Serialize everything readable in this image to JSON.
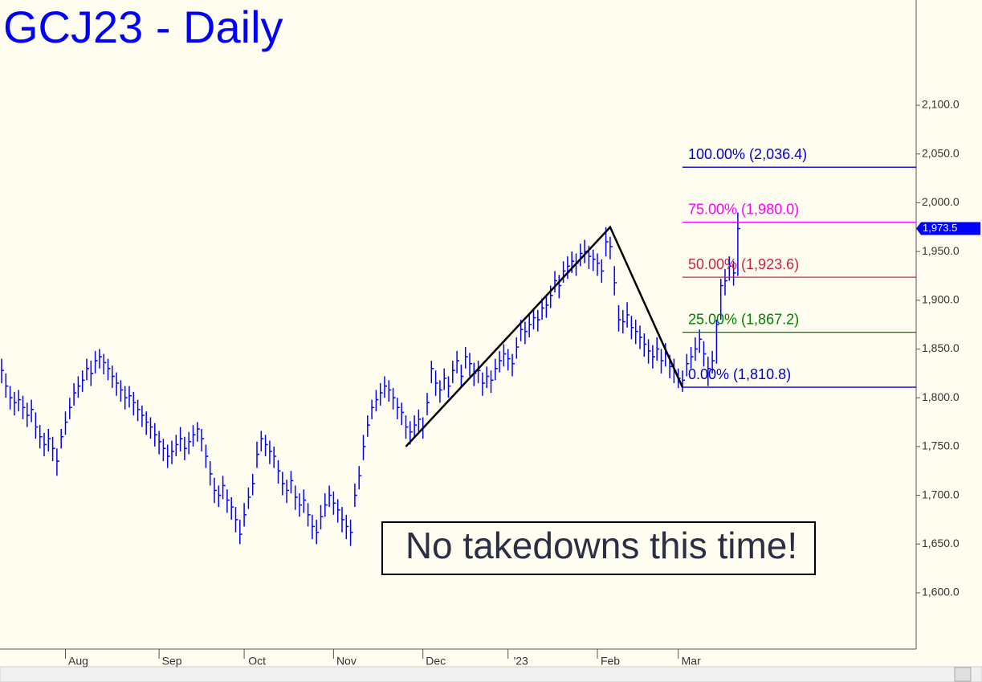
{
  "chart_data": {
    "type": "ohlc",
    "title": "GCJ23 - Daily",
    "color": "#0000ff",
    "categories": [
      null,
      null,
      null,
      null,
      null,
      null,
      null,
      null,
      null,
      null,
      null,
      null,
      null,
      null,
      null,
      "Aug",
      null,
      null,
      null,
      null,
      null,
      null,
      null,
      null,
      null,
      null,
      null,
      null,
      null,
      null,
      null,
      null,
      null,
      null,
      null,
      null,
      null,
      "Sep",
      null,
      null,
      null,
      null,
      null,
      null,
      null,
      null,
      null,
      null,
      null,
      null,
      null,
      null,
      null,
      null,
      null,
      null,
      null,
      "Oct",
      null,
      null,
      null,
      null,
      null,
      null,
      null,
      null,
      null,
      null,
      null,
      null,
      null,
      null,
      null,
      null,
      null,
      null,
      null,
      null,
      "Nov",
      null,
      null,
      null,
      null,
      null,
      null,
      null,
      null,
      null,
      null,
      null,
      null,
      null,
      null,
      null,
      null,
      null,
      null,
      null,
      null,
      "Dec",
      null,
      null,
      null,
      null,
      null,
      null,
      null,
      null,
      null,
      null,
      null,
      null,
      null,
      null,
      null,
      null,
      null,
      null,
      null,
      "'23",
      null,
      null,
      null,
      null,
      null,
      null,
      null,
      null,
      null,
      null,
      null,
      null,
      null,
      null,
      null,
      null,
      null,
      null,
      null,
      null,
      "Feb",
      null,
      null,
      null,
      null,
      null,
      null,
      null,
      null,
      null,
      null,
      null,
      null,
      null,
      null,
      null,
      null,
      null,
      null,
      "Mar",
      null,
      null,
      null,
      null,
      null,
      null,
      null,
      null,
      null,
      null,
      null,
      null,
      null,
      null
    ],
    "high": [
      1840,
      1825,
      1812,
      1806,
      1808,
      1802,
      1795,
      1798,
      1785,
      1772,
      1764,
      1768,
      1760,
      1748,
      1768,
      1786,
      1800,
      1815,
      1822,
      1828,
      1840,
      1838,
      1848,
      1850,
      1845,
      1840,
      1833,
      1826,
      1818,
      1812,
      1812,
      1806,
      1798,
      1792,
      1786,
      1780,
      1774,
      1766,
      1758,
      1752,
      1756,
      1762,
      1770,
      1760,
      1765,
      1772,
      1775,
      1768,
      1752,
      1735,
      1718,
      1710,
      1720,
      1706,
      1698,
      1688,
      1675,
      1692,
      1708,
      1722,
      1755,
      1766,
      1762,
      1756,
      1750,
      1736,
      1724,
      1716,
      1725,
      1710,
      1702,
      1706,
      1692,
      1680,
      1675,
      1690,
      1702,
      1710,
      1704,
      1696,
      1688,
      1680,
      1675,
      1712,
      1730,
      1762,
      1782,
      1798,
      1808,
      1815,
      1822,
      1818,
      1810,
      1800,
      1795,
      1782,
      1776,
      1782,
      1788,
      1780,
      1805,
      1838,
      1828,
      1818,
      1830,
      1822,
      1838,
      1848,
      1834,
      1852,
      1846,
      1836,
      1838,
      1826,
      1832,
      1828,
      1840,
      1848,
      1855,
      1850,
      1845,
      1862,
      1880,
      1878,
      1886,
      1892,
      1890,
      1902,
      1905,
      1915,
      1930,
      1926,
      1940,
      1945,
      1950,
      1948,
      1958,
      1962,
      1956,
      1952,
      1948,
      1942,
      1975,
      1965,
      1935,
      1895,
      1890,
      1898,
      1884,
      1880,
      1874,
      1866,
      1860,
      1854,
      1862,
      1850,
      1856,
      1844,
      1840,
      1830,
      1828,
      1845,
      1852,
      1862,
      1870,
      1858,
      1842,
      1848,
      1880,
      1922,
      1932,
      1945,
      1940,
      1990
    ],
    "low": [
      1815,
      1800,
      1788,
      1782,
      1786,
      1778,
      1770,
      1775,
      1758,
      1748,
      1740,
      1745,
      1735,
      1720,
      1748,
      1762,
      1778,
      1792,
      1800,
      1806,
      1818,
      1812,
      1825,
      1830,
      1824,
      1818,
      1810,
      1802,
      1796,
      1788,
      1790,
      1782,
      1776,
      1770,
      1762,
      1758,
      1750,
      1742,
      1735,
      1728,
      1732,
      1740,
      1745,
      1736,
      1742,
      1750,
      1755,
      1745,
      1728,
      1710,
      1692,
      1688,
      1696,
      1682,
      1675,
      1662,
      1650,
      1668,
      1686,
      1700,
      1728,
      1745,
      1740,
      1732,
      1728,
      1712,
      1700,
      1692,
      1702,
      1685,
      1678,
      1682,
      1668,
      1655,
      1650,
      1665,
      1678,
      1688,
      1680,
      1672,
      1662,
      1655,
      1648,
      1688,
      1706,
      1736,
      1760,
      1778,
      1786,
      1792,
      1800,
      1796,
      1788,
      1778,
      1772,
      1758,
      1752,
      1760,
      1765,
      1758,
      1782,
      1815,
      1802,
      1795,
      1808,
      1800,
      1815,
      1825,
      1810,
      1830,
      1822,
      1812,
      1815,
      1802,
      1810,
      1805,
      1818,
      1826,
      1832,
      1828,
      1822,
      1840,
      1858,
      1855,
      1862,
      1870,
      1868,
      1880,
      1882,
      1892,
      1908,
      1902,
      1918,
      1922,
      1928,
      1925,
      1935,
      1938,
      1932,
      1930,
      1925,
      1918,
      1945,
      1942,
      1905,
      1868,
      1866,
      1872,
      1860,
      1855,
      1850,
      1842,
      1835,
      1830,
      1838,
      1825,
      1832,
      1820,
      1815,
      1810,
      1806,
      1822,
      1830,
      1838,
      1846,
      1832,
      1812,
      1825,
      1835,
      1880,
      1905,
      1920,
      1915,
      1925
    ],
    "close": [
      1828,
      1812,
      1800,
      1795,
      1798,
      1790,
      1782,
      1788,
      1770,
      1760,
      1752,
      1758,
      1748,
      1735,
      1760,
      1775,
      1790,
      1805,
      1812,
      1818,
      1830,
      1825,
      1838,
      1842,
      1836,
      1830,
      1822,
      1815,
      1808,
      1800,
      1802,
      1795,
      1788,
      1782,
      1775,
      1770,
      1762,
      1755,
      1748,
      1740,
      1745,
      1752,
      1758,
      1748,
      1755,
      1762,
      1768,
      1758,
      1740,
      1722,
      1705,
      1700,
      1710,
      1695,
      1688,
      1675,
      1660,
      1680,
      1698,
      1712,
      1742,
      1758,
      1752,
      1745,
      1740,
      1725,
      1712,
      1705,
      1715,
      1698,
      1690,
      1695,
      1680,
      1668,
      1662,
      1678,
      1690,
      1700,
      1692,
      1685,
      1675,
      1668,
      1662,
      1700,
      1720,
      1750,
      1772,
      1790,
      1798,
      1805,
      1812,
      1808,
      1800,
      1790,
      1785,
      1770,
      1765,
      1772,
      1778,
      1770,
      1795,
      1830,
      1815,
      1808,
      1820,
      1812,
      1828,
      1838,
      1822,
      1842,
      1835,
      1825,
      1828,
      1815,
      1822,
      1818,
      1830,
      1838,
      1845,
      1840,
      1835,
      1852,
      1870,
      1868,
      1875,
      1882,
      1880,
      1892,
      1895,
      1905,
      1920,
      1915,
      1930,
      1935,
      1940,
      1938,
      1948,
      1950,
      1945,
      1942,
      1938,
      1930,
      1960,
      1955,
      1918,
      1880,
      1878,
      1885,
      1872,
      1868,
      1862,
      1855,
      1848,
      1842,
      1850,
      1838,
      1845,
      1832,
      1828,
      1820,
      1818,
      1835,
      1842,
      1850,
      1860,
      1845,
      1830,
      1838,
      1875,
      1915,
      1920,
      1935,
      1928,
      1973.5
    ],
    "last_value_label": "1,973.5",
    "ylim": [
      1542.3,
      2207.9
    ],
    "yticks": [
      {
        "value": 1600,
        "label": "1,600.0"
      },
      {
        "value": 1650,
        "label": "1,650.0"
      },
      {
        "value": 1700,
        "label": "1,700.0"
      },
      {
        "value": 1750,
        "label": "1,750.0"
      },
      {
        "value": 1800,
        "label": "1,800.0"
      },
      {
        "value": 1850,
        "label": "1,850.0"
      },
      {
        "value": 1900,
        "label": "1,900.0"
      },
      {
        "value": 1950,
        "label": "1,950.0"
      },
      {
        "value": 2000,
        "label": "2,000.0"
      },
      {
        "value": 2050,
        "label": "2,050.0"
      },
      {
        "value": 2100,
        "label": "2,100.0"
      }
    ],
    "fib_levels": [
      {
        "label": "100.00% (2,036.4)",
        "value": 2036.4,
        "color": "#0000cc"
      },
      {
        "label": "75.00% (1,980.0)",
        "value": 1980.0,
        "color": "#ff00ff"
      },
      {
        "label": "50.00% (1,923.6)",
        "value": 1923.6,
        "color": "#cc2244"
      },
      {
        "label": "25.00% (1,867.2)",
        "value": 1867.2,
        "color": "#008000"
      },
      {
        "label": "0.00% (1,810.8)",
        "value": 1810.8,
        "color": "#0000cc"
      }
    ],
    "pivots": {
      "bars": [
        95,
        143,
        160
      ],
      "values": [
        1750,
        1975,
        1810.8
      ],
      "color": "#000000"
    },
    "annotation": "No takedowns this time!"
  }
}
